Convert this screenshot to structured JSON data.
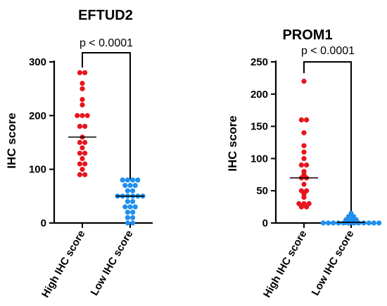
{
  "chart_data": [
    {
      "type": "scatter",
      "title": "EFTUD2",
      "ylabel": "IHC score",
      "xlabel": "",
      "ylim": [
        0,
        300
      ],
      "yticks": [
        0,
        100,
        200,
        300
      ],
      "categories": [
        "High IHC score",
        "Low IHC score"
      ],
      "annotation": "p < 0.0001",
      "series": [
        {
          "color": "#e8141c",
          "median": 160,
          "values": [
            280,
            280,
            260,
            250,
            230,
            220,
            200,
            200,
            200,
            180,
            180,
            160,
            150,
            150,
            140,
            130,
            130,
            120,
            110,
            110,
            100,
            90,
            90
          ]
        },
        {
          "color": "#1e8ff0",
          "median": 50,
          "values": [
            80,
            80,
            80,
            80,
            70,
            70,
            70,
            60,
            60,
            50,
            50,
            50,
            50,
            50,
            50,
            40,
            40,
            30,
            30,
            30,
            20,
            20,
            10,
            10,
            0,
            0
          ]
        }
      ]
    },
    {
      "type": "scatter",
      "title": "PROM1",
      "ylabel": "IHC score",
      "xlabel": "",
      "ylim": [
        0,
        250
      ],
      "yticks": [
        0,
        50,
        100,
        150,
        200,
        250
      ],
      "categories": [
        "High IHC score",
        "Low IHC score"
      ],
      "annotation": "p < 0.0001",
      "series": [
        {
          "color": "#e8141c",
          "median": 70,
          "values": [
            220,
            160,
            160,
            140,
            120,
            110,
            100,
            90,
            90,
            80,
            75,
            70,
            70,
            60,
            50,
            50,
            45,
            40,
            30,
            30,
            30,
            25,
            25
          ]
        },
        {
          "color": "#1e8ff0",
          "median": 1,
          "values": [
            15,
            10,
            10,
            5,
            5,
            5,
            3,
            2,
            2,
            1,
            1,
            1,
            0,
            0,
            0,
            0,
            0,
            0,
            0,
            0,
            0,
            0,
            0,
            0
          ]
        }
      ]
    }
  ]
}
